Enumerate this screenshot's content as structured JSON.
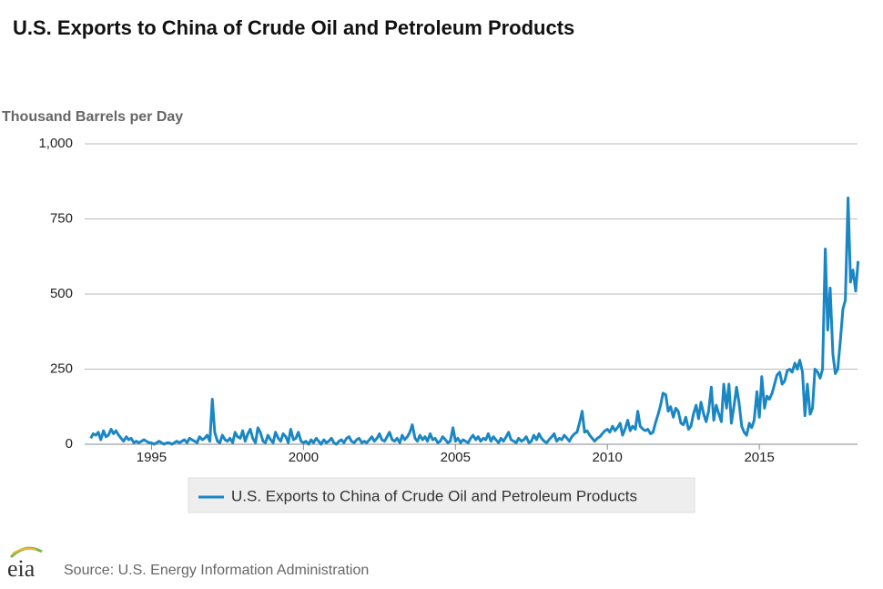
{
  "chart_data": {
    "type": "line",
    "title": "U.S. Exports to China of Crude Oil and Petroleum Products",
    "y_label": "Thousand Barrels per Day",
    "source": "Source: U.S. Energy Information Administration",
    "logo": "eia",
    "xlim": [
      1992.8,
      2018.35
    ],
    "xticks": [
      1995,
      2000,
      2005,
      2010,
      2015
    ],
    "ylim": [
      0,
      1000
    ],
    "yticks": [
      0,
      250,
      500,
      750,
      {
        "value": 1000,
        "label": "1,000"
      }
    ],
    "grid": true,
    "x": [
      1993,
      1993.08,
      1993.17,
      1993.25,
      1993.33,
      1993.42,
      1993.5,
      1993.58,
      1993.67,
      1993.75,
      1993.83,
      1993.92,
      1994,
      1994.08,
      1994.17,
      1994.25,
      1994.33,
      1994.42,
      1994.5,
      1994.58,
      1994.67,
      1994.75,
      1994.83,
      1994.92,
      1995,
      1995.08,
      1995.17,
      1995.25,
      1995.33,
      1995.42,
      1995.5,
      1995.58,
      1995.67,
      1995.75,
      1995.83,
      1995.92,
      1996,
      1996.08,
      1996.17,
      1996.25,
      1996.33,
      1996.42,
      1996.5,
      1996.58,
      1996.67,
      1996.75,
      1996.83,
      1996.92,
      1997,
      1997.08,
      1997.17,
      1997.25,
      1997.33,
      1997.42,
      1997.5,
      1997.58,
      1997.67,
      1997.75,
      1997.83,
      1997.92,
      1998,
      1998.08,
      1998.17,
      1998.25,
      1998.33,
      1998.42,
      1998.5,
      1998.58,
      1998.67,
      1998.75,
      1998.83,
      1998.92,
      1999,
      1999.08,
      1999.17,
      1999.25,
      1999.33,
      1999.42,
      1999.5,
      1999.58,
      1999.67,
      1999.75,
      1999.83,
      1999.92,
      2000,
      2000.08,
      2000.17,
      2000.25,
      2000.33,
      2000.42,
      2000.5,
      2000.58,
      2000.67,
      2000.75,
      2000.83,
      2000.92,
      2001,
      2001.08,
      2001.17,
      2001.25,
      2001.33,
      2001.42,
      2001.5,
      2001.58,
      2001.67,
      2001.75,
      2001.83,
      2001.92,
      2002,
      2002.08,
      2002.17,
      2002.25,
      2002.33,
      2002.42,
      2002.5,
      2002.58,
      2002.67,
      2002.75,
      2002.83,
      2002.92,
      2003,
      2003.08,
      2003.17,
      2003.25,
      2003.33,
      2003.42,
      2003.5,
      2003.58,
      2003.67,
      2003.75,
      2003.83,
      2003.92,
      2004,
      2004.08,
      2004.17,
      2004.25,
      2004.33,
      2004.42,
      2004.5,
      2004.58,
      2004.67,
      2004.75,
      2004.83,
      2004.92,
      2005,
      2005.08,
      2005.17,
      2005.25,
      2005.33,
      2005.42,
      2005.5,
      2005.58,
      2005.67,
      2005.75,
      2005.83,
      2005.92,
      2006,
      2006.08,
      2006.17,
      2006.25,
      2006.33,
      2006.42,
      2006.5,
      2006.58,
      2006.67,
      2006.75,
      2006.83,
      2006.92,
      2007,
      2007.08,
      2007.17,
      2007.25,
      2007.33,
      2007.42,
      2007.5,
      2007.58,
      2007.67,
      2007.75,
      2007.83,
      2007.92,
      2008,
      2008.08,
      2008.17,
      2008.25,
      2008.33,
      2008.42,
      2008.5,
      2008.58,
      2008.67,
      2008.75,
      2008.83,
      2008.92,
      2009,
      2009.08,
      2009.17,
      2009.25,
      2009.33,
      2009.42,
      2009.5,
      2009.58,
      2009.67,
      2009.75,
      2009.83,
      2009.92,
      2010,
      2010.08,
      2010.17,
      2010.25,
      2010.33,
      2010.42,
      2010.5,
      2010.58,
      2010.67,
      2010.75,
      2010.83,
      2010.92,
      2011,
      2011.08,
      2011.17,
      2011.25,
      2011.33,
      2011.42,
      2011.5,
      2011.58,
      2011.67,
      2011.75,
      2011.83,
      2011.92,
      2012,
      2012.08,
      2012.17,
      2012.25,
      2012.33,
      2012.42,
      2012.5,
      2012.58,
      2012.67,
      2012.75,
      2012.83,
      2012.92,
      2013,
      2013.08,
      2013.17,
      2013.25,
      2013.33,
      2013.42,
      2013.5,
      2013.58,
      2013.67,
      2013.75,
      2013.83,
      2013.92,
      2014,
      2014.08,
      2014.17,
      2014.25,
      2014.33,
      2014.42,
      2014.5,
      2014.58,
      2014.67,
      2014.75,
      2014.83,
      2014.92,
      2015,
      2015.08,
      2015.17,
      2015.25,
      2015.33,
      2015.42,
      2015.5,
      2015.58,
      2015.67,
      2015.75,
      2015.83,
      2015.92,
      2016,
      2016.08,
      2016.17,
      2016.25,
      2016.33,
      2016.42,
      2016.5,
      2016.58,
      2016.67,
      2016.75,
      2016.83,
      2016.92,
      2017,
      2017.08,
      2017.17,
      2017.25,
      2017.33,
      2017.42,
      2017.5,
      2017.58,
      2017.67,
      2017.75,
      2017.83,
      2017.92,
      2018,
      2018.08,
      2018.17,
      2018.25
    ],
    "series": [
      {
        "name": "U.S. Exports to China of Crude Oil and Petroleum Products",
        "color": "#1a87c4",
        "values": [
          20,
          35,
          30,
          40,
          15,
          45,
          25,
          30,
          50,
          35,
          45,
          30,
          20,
          10,
          25,
          15,
          20,
          5,
          10,
          5,
          10,
          15,
          10,
          5,
          5,
          0,
          5,
          10,
          5,
          0,
          5,
          5,
          0,
          5,
          10,
          5,
          10,
          15,
          5,
          20,
          15,
          10,
          5,
          25,
          15,
          20,
          30,
          10,
          150,
          40,
          10,
          5,
          30,
          15,
          10,
          20,
          5,
          40,
          25,
          20,
          45,
          10,
          35,
          50,
          20,
          5,
          55,
          40,
          10,
          5,
          30,
          15,
          5,
          40,
          20,
          10,
          35,
          25,
          5,
          50,
          15,
          20,
          40,
          10,
          5,
          10,
          0,
          15,
          5,
          20,
          10,
          0,
          15,
          5,
          10,
          20,
          5,
          0,
          10,
          15,
          5,
          20,
          25,
          10,
          5,
          15,
          20,
          5,
          10,
          5,
          15,
          25,
          10,
          20,
          35,
          15,
          10,
          25,
          40,
          15,
          10,
          20,
          5,
          30,
          15,
          25,
          40,
          65,
          20,
          10,
          30,
          15,
          25,
          10,
          35,
          15,
          20,
          5,
          10,
          25,
          15,
          5,
          10,
          55,
          10,
          20,
          5,
          15,
          10,
          5,
          20,
          30,
          15,
          25,
          10,
          20,
          15,
          35,
          10,
          25,
          15,
          5,
          20,
          10,
          25,
          40,
          15,
          10,
          5,
          20,
          10,
          15,
          25,
          5,
          10,
          30,
          15,
          35,
          20,
          10,
          5,
          15,
          25,
          35,
          10,
          20,
          15,
          30,
          20,
          10,
          25,
          35,
          40,
          70,
          110,
          40,
          45,
          30,
          20,
          10,
          20,
          25,
          35,
          45,
          50,
          40,
          60,
          45,
          55,
          70,
          30,
          50,
          80,
          45,
          60,
          50,
          110,
          60,
          50,
          45,
          50,
          35,
          40,
          70,
          100,
          130,
          170,
          165,
          110,
          125,
          90,
          120,
          110,
          70,
          65,
          90,
          50,
          60,
          100,
          130,
          85,
          140,
          100,
          75,
          110,
          190,
          80,
          130,
          100,
          75,
          200,
          120,
          200,
          70,
          130,
          190,
          140,
          60,
          40,
          30,
          70,
          55,
          80,
          175,
          90,
          225,
          120,
          160,
          150,
          170,
          200,
          230,
          240,
          200,
          210,
          245,
          250,
          240,
          270,
          250,
          280,
          240,
          95,
          200,
          100,
          120,
          250,
          240,
          220,
          250,
          650,
          380,
          520,
          300,
          235,
          250,
          350,
          450,
          480,
          820,
          540,
          580,
          510,
          610
        ]
      }
    ]
  }
}
